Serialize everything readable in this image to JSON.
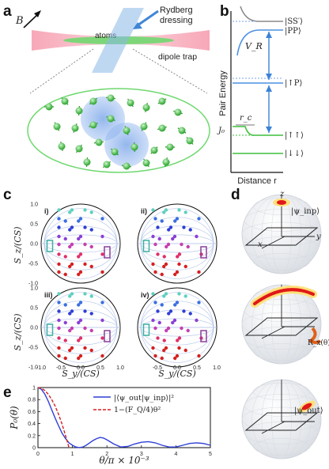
{
  "panels": {
    "a": {
      "label": "a",
      "field_label": "B",
      "atoms_label": "atoms",
      "rydberg_label_1": "Rydberg",
      "rydberg_label_2": "dressing",
      "trap_label": "dipole trap",
      "colors": {
        "trap": "#f4a9b8",
        "atoms": "#4ec94e",
        "beam": "#5b9bd5",
        "blob": "#7aa6e6"
      }
    },
    "b": {
      "label": "b",
      "y_axis": "Pair Energy",
      "x_axis": "Distance r",
      "levels": [
        "|SS′⟩",
        "|PP⟩",
        "|↑P⟩",
        "|↑↑⟩",
        "|↓↓⟩"
      ],
      "potential_label": "V_R",
      "j0_label": "J₀",
      "rc_label": "r_c"
    },
    "c": {
      "label": "c",
      "subpanels": [
        "i)",
        "ii)",
        "iii)",
        "iv)"
      ],
      "y_axis_label": "S_z/(CS)",
      "x_axis_left": "S_y/(CS)",
      "x_axis_right": "S_y/(CS)",
      "ticks": [
        "1.0",
        "0.5",
        "0.0",
        "-0.5",
        "-1.0"
      ],
      "xticks": [
        "-1.0",
        "-0.5",
        "0.0",
        "0.5",
        "1.0"
      ],
      "xticks_right": [
        "-0.5",
        "0.0",
        "0.5",
        "1.0"
      ]
    },
    "d": {
      "label": "d",
      "state_in": "|ψ_inp⟩",
      "state_out": "|ψ_out⟩",
      "rotation": "R_x(θ)",
      "axes": {
        "z": "z",
        "y": "y",
        "x": "x"
      }
    },
    "e": {
      "label": "e",
      "ylabel": "P₀(θ)",
      "xlabel": "θ/π × 10⁻³",
      "legend_1": "|⟨ψ_out|ψ_inp⟩|²",
      "legend_2": "1−(F_Q/4)θ²",
      "ytick_labels": [
        "0",
        "0.2",
        "0.4",
        "0.6",
        "0.8",
        "1"
      ],
      "xtick_labels": [
        "0",
        "1",
        "2",
        "3",
        "4",
        "5"
      ]
    }
  },
  "chart_data": {
    "type": "line",
    "title": "",
    "xlabel": "θ/π × 10⁻³",
    "ylabel": "P₀(θ)",
    "xlim": [
      0,
      5
    ],
    "ylim": [
      0,
      1
    ],
    "series": [
      {
        "name": "|⟨ψ_out|ψ_inp⟩|²",
        "color": "#2f3fd6",
        "x": [
          0,
          0.1,
          0.2,
          0.3,
          0.4,
          0.5,
          0.6,
          0.7,
          0.8,
          0.9,
          1.0,
          1.1,
          1.2,
          1.3,
          1.4,
          1.5,
          1.6,
          1.7,
          1.8,
          1.9,
          2.0,
          2.2,
          2.4,
          2.6,
          2.8,
          3.0,
          3.2,
          3.4,
          3.6,
          3.8,
          4.0,
          4.2,
          4.4,
          4.6,
          4.8,
          5.0
        ],
        "y": [
          1.0,
          0.97,
          0.89,
          0.77,
          0.63,
          0.49,
          0.36,
          0.24,
          0.15,
          0.08,
          0.04,
          0.01,
          0.0,
          0.01,
          0.04,
          0.08,
          0.12,
          0.15,
          0.17,
          0.16,
          0.13,
          0.06,
          0.01,
          0.02,
          0.06,
          0.09,
          0.1,
          0.08,
          0.04,
          0.01,
          0.01,
          0.04,
          0.07,
          0.08,
          0.07,
          0.04
        ]
      },
      {
        "name": "1−(F_Q/4)θ²",
        "color": "#d62020",
        "x": [
          0,
          0.1,
          0.2,
          0.3,
          0.4,
          0.5,
          0.6,
          0.7,
          0.8,
          0.85,
          0.9
        ],
        "y": [
          1.0,
          0.988,
          0.95,
          0.888,
          0.8,
          0.69,
          0.55,
          0.39,
          0.2,
          0.1,
          0.0
        ]
      }
    ]
  }
}
